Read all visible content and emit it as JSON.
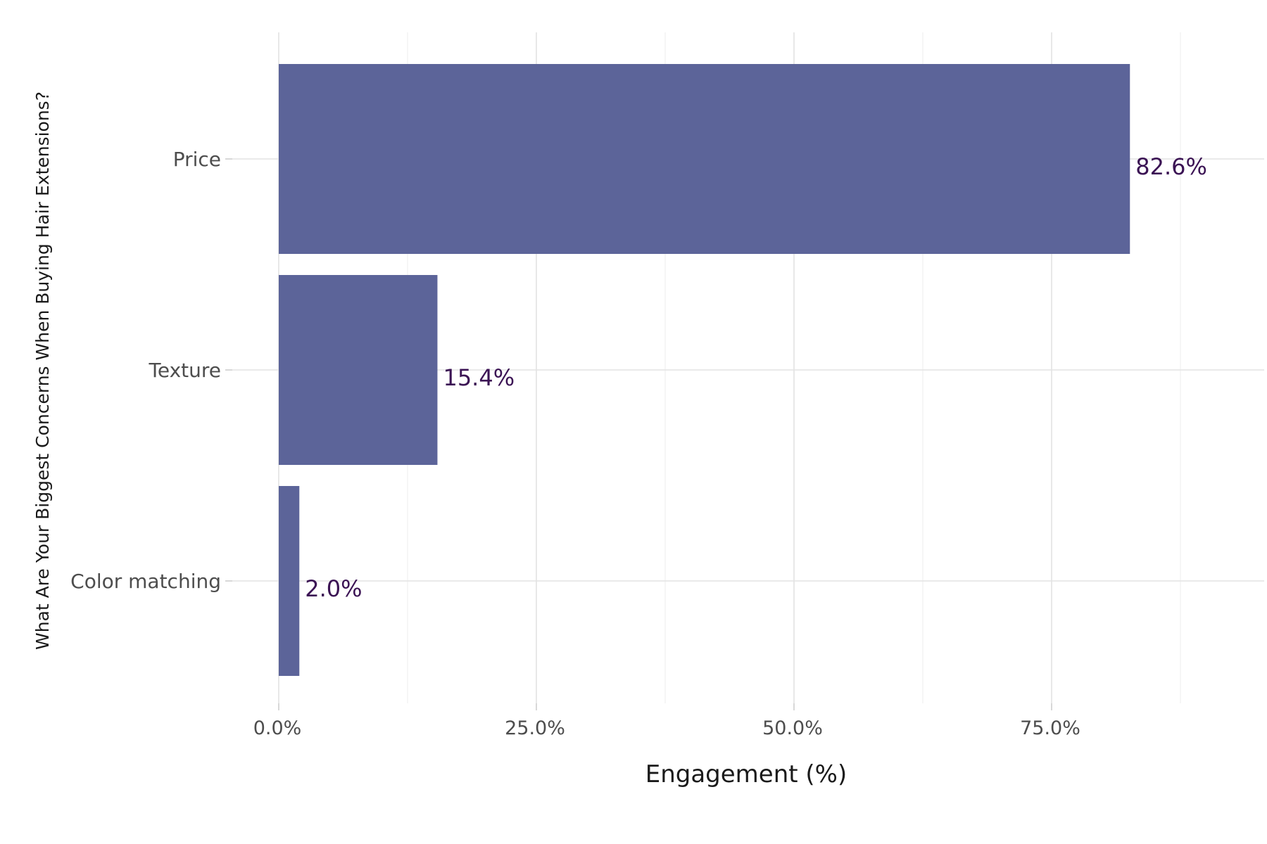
{
  "chart_data": {
    "type": "bar",
    "orientation": "horizontal",
    "categories": [
      "Price",
      "Texture",
      "Color matching"
    ],
    "values": [
      82.6,
      15.4,
      2.0
    ],
    "value_labels": [
      "82.6%",
      "15.4%",
      "2.0%"
    ],
    "xlabel": "Engagement (%)",
    "ylabel": "What Are Your Biggest Concerns When Buying Hair Extensions?",
    "xlim": [
      0,
      95
    ],
    "x_ticks": [
      0,
      25,
      50,
      75
    ],
    "x_tick_labels": [
      "0.0%",
      "25.0%",
      "50.0%",
      "75.0%"
    ],
    "x_minor_ticks": [
      12.5,
      37.5,
      62.5,
      87.5
    ],
    "grid": true,
    "legend": "none",
    "colors": {
      "bar": "#5c6499",
      "value_label": "#3b1354"
    }
  }
}
